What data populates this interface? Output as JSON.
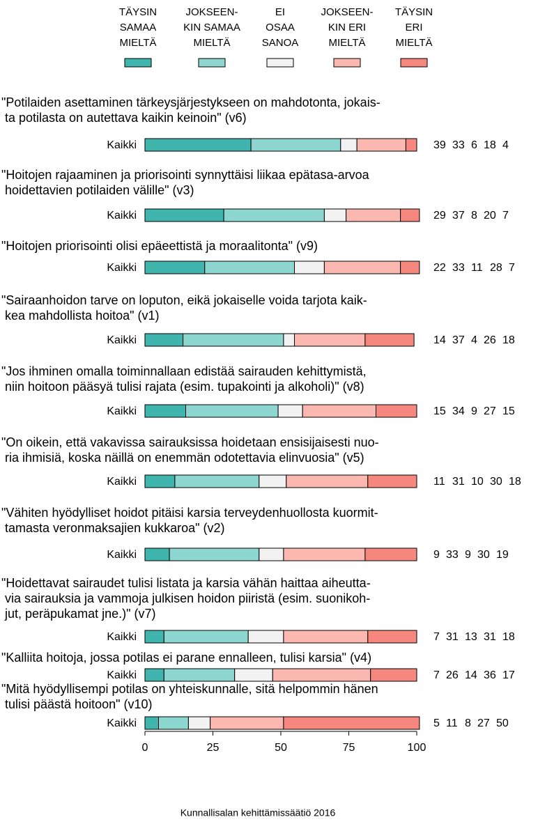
{
  "chart_data": {
    "type": "bar",
    "orientation": "horizontal",
    "stacked": true,
    "row_label": "Kaikki",
    "source": "Kunnallisalan kehittämissäätiö 2016",
    "categories": [
      [
        "\"Potilaiden asettaminen tärkeysjärjestykseen on mahdotonta, jokais-",
        "ta potilasta on autettava kaikin keinoin\" (v6)"
      ],
      [
        "\"Hoitojen rajaaminen ja priorisointi synnyttäisi liikaa epätasa-arvoa",
        "hoidettavien potilaiden välille\" (v3)"
      ],
      [
        "\"Hoitojen priorisointi olisi epäeettistä ja moraalitonta\" (v9)"
      ],
      [
        "\"Sairaanhoidon tarve on loputon, eikä jokaiselle voida tarjota kaik-",
        "kea mahdollista hoitoa\" (v1)"
      ],
      [
        "\"Jos ihminen omalla toiminnallaan edistää sairauden kehittymistä,",
        "niin hoitoon pääsyä tulisi rajata (esim. tupakointi ja alkoholi)\" (v8)"
      ],
      [
        "\"On oikein, että vakavissa sairauksissa hoidetaan ensisijaisesti nuo-",
        "ria ihmisiä, koska näillä on enemmän odotettavia elinvuosia\" (v5)"
      ],
      [
        "\"Vähiten hyödylliset hoidot pitäisi karsia terveydenhuollosta kuormit-",
        "tamasta veronmaksajien kukkaroa\" (v2)"
      ],
      [
        "\"Hoidettavat sairaudet tulisi listata ja karsia vähän haittaa aiheutta-",
        "via sairauksia ja vammoja julkisen hoidon piiristä (esim. suonikoh-",
        "jut, peräpukamat jne.)\" (v7)"
      ],
      [
        "\"Kalliita hoitoja, jossa potilas ei parane ennalleen, tulisi karsia\" (v4)"
      ],
      [
        "\"Mitä hyödyllisempi potilas on yhteiskunnalle, sitä helpommin hänen",
        "tulisi päästä hoitoon\" (v10)"
      ]
    ],
    "series": [
      {
        "name": [
          "TÄYSIN",
          "SAMAA",
          "MIELTÄ"
        ],
        "color": "#3fb5ad",
        "values": [
          39,
          29,
          22,
          14,
          15,
          11,
          9,
          7,
          7,
          5
        ]
      },
      {
        "name": [
          "JOKSEEN-",
          "KIN SAMAA",
          "MIELTÄ"
        ],
        "color": "#8ed6d0",
        "values": [
          33,
          37,
          33,
          37,
          34,
          31,
          33,
          31,
          26,
          11
        ]
      },
      {
        "name": [
          "EI",
          "OSAA",
          "SANOA"
        ],
        "color": "#f2f2f2",
        "values": [
          6,
          8,
          11,
          4,
          9,
          10,
          9,
          13,
          14,
          8
        ]
      },
      {
        "name": [
          "JOKSEEN-",
          "KIN ERI",
          "MIELTÄ"
        ],
        "color": "#fbb8b0",
        "values": [
          18,
          20,
          28,
          26,
          27,
          30,
          30,
          31,
          36,
          27
        ]
      },
      {
        "name": [
          "TÄYSIN",
          "ERI",
          "MIELTÄ"
        ],
        "color": "#f5877f",
        "values": [
          4,
          7,
          7,
          18,
          15,
          18,
          19,
          18,
          17,
          50
        ]
      }
    ],
    "xlim": [
      0,
      100
    ],
    "xticks": [
      0,
      25,
      50,
      75,
      100
    ]
  }
}
